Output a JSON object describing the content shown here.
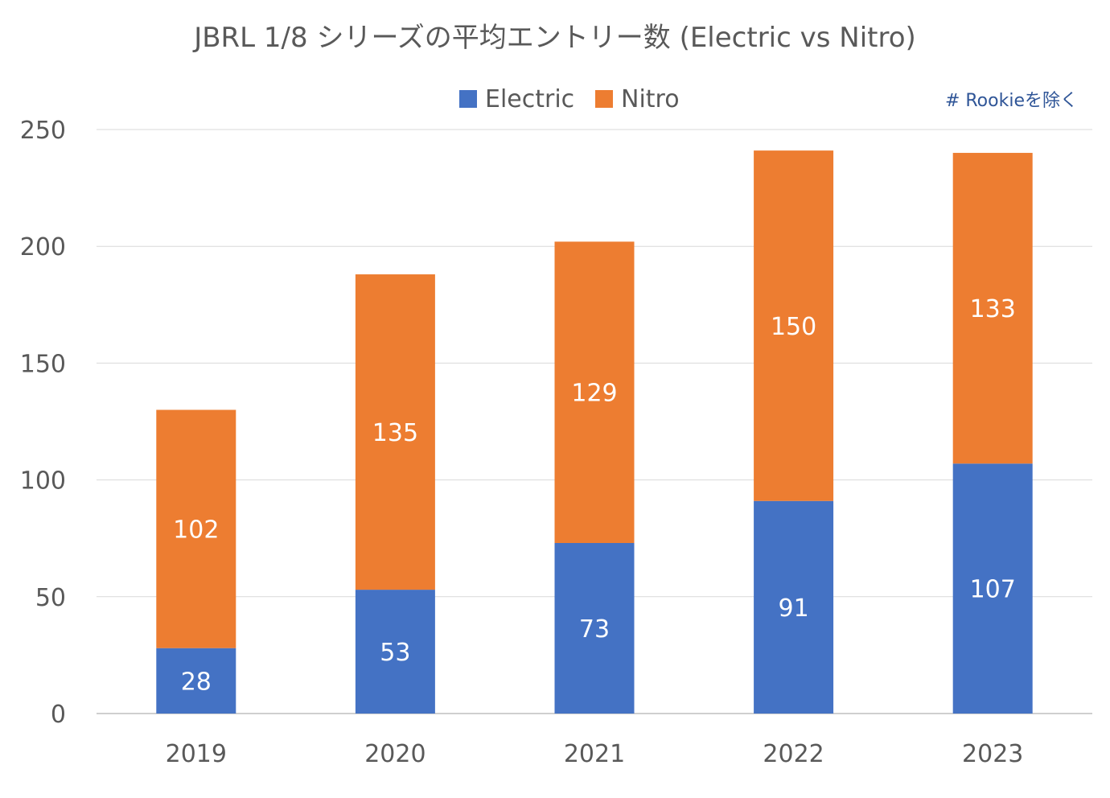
{
  "chart_data": {
    "type": "bar",
    "stacked": true,
    "title": "JBRL 1/8 シリーズの平均エントリー数 (Electric vs Nitro)",
    "note": "# Rookieを除く",
    "categories": [
      "2019",
      "2020",
      "2021",
      "2022",
      "2023"
    ],
    "series": [
      {
        "name": "Electric",
        "values": [
          28,
          53,
          73,
          91,
          107
        ],
        "color": "#4472c4"
      },
      {
        "name": "Nitro",
        "values": [
          102,
          135,
          129,
          150,
          133
        ],
        "color": "#ed7d31"
      }
    ],
    "ylim": [
      0,
      250
    ],
    "yticks": [
      "0",
      "50",
      "100",
      "150",
      "200",
      "250"
    ],
    "grid": true,
    "legend_position": "top",
    "data_labels": true
  }
}
